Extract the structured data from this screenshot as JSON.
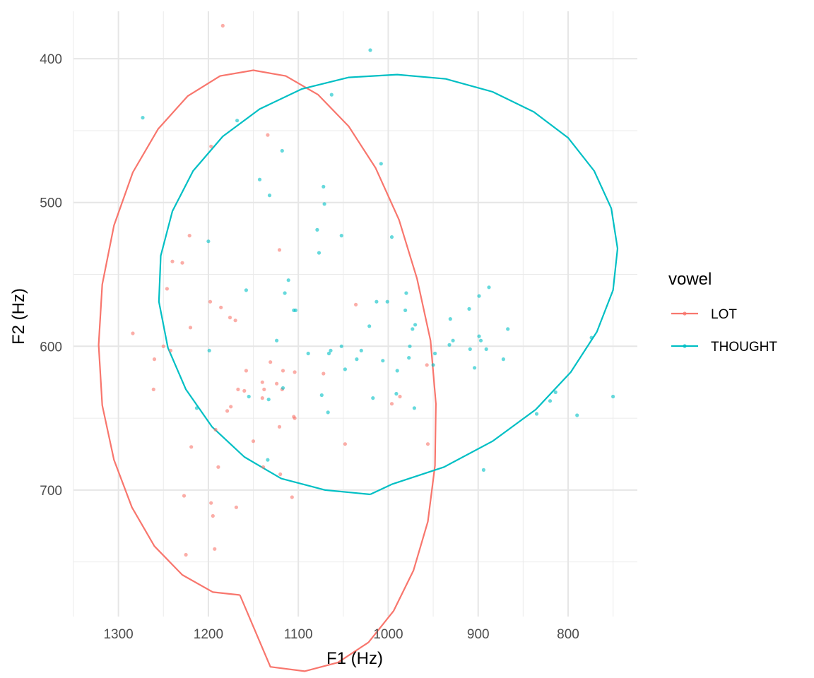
{
  "chart_data": {
    "type": "scatter",
    "xlabel": "F1 (Hz)",
    "ylabel": "F2 (Hz)",
    "x_reversed": true,
    "y_reversed": true,
    "xlim": [
      1350,
      723
    ],
    "ylim": [
      367,
      788
    ],
    "x_ticks": [
      1300,
      1200,
      1100,
      1000,
      900,
      800
    ],
    "y_ticks": [
      400,
      500,
      600,
      700
    ],
    "grid": true,
    "legend_title": "vowel",
    "legend_position": "right",
    "series": [
      {
        "name": "LOT",
        "color": "#F8766D",
        "points": [
          [
            1184,
            377
          ],
          [
            1134,
            453
          ],
          [
            1197,
            461
          ],
          [
            1221,
            523
          ],
          [
            1240,
            541
          ],
          [
            1229,
            542
          ],
          [
            1121,
            533
          ],
          [
            1246,
            560
          ],
          [
            1198,
            569
          ],
          [
            1186,
            573
          ],
          [
            1176,
            580
          ],
          [
            1170,
            582
          ],
          [
            1220,
            587
          ],
          [
            1284,
            591
          ],
          [
            1250,
            600
          ],
          [
            1242,
            603
          ],
          [
            1260,
            609
          ],
          [
            1158,
            617
          ],
          [
            1131,
            611
          ],
          [
            1117,
            617
          ],
          [
            1104,
            618
          ],
          [
            1072,
            619
          ],
          [
            1036,
            571
          ],
          [
            1261,
            630
          ],
          [
            1167,
            630
          ],
          [
            1160,
            631
          ],
          [
            1140,
            625
          ],
          [
            1138,
            630
          ],
          [
            1124,
            626
          ],
          [
            1118,
            630
          ],
          [
            1175,
            642
          ],
          [
            1179,
            645
          ],
          [
            1140,
            636
          ],
          [
            1105,
            649
          ],
          [
            1104,
            650
          ],
          [
            1121,
            656
          ],
          [
            1192,
            658
          ],
          [
            1150,
            666
          ],
          [
            1048,
            668
          ],
          [
            1219,
            670
          ],
          [
            1189,
            684
          ],
          [
            1139,
            684
          ],
          [
            1120,
            689
          ],
          [
            1227,
            704
          ],
          [
            1107,
            705
          ],
          [
            1197,
            709
          ],
          [
            1169,
            712
          ],
          [
            1195,
            718
          ],
          [
            1193,
            741
          ],
          [
            1225,
            745
          ],
          [
            996,
            640
          ],
          [
            987,
            635
          ],
          [
            957,
            613
          ],
          [
            956,
            668
          ]
        ]
      },
      {
        "name": "THOUGHT",
        "color": "#00BFC4",
        "points": [
          [
            1020,
            394
          ],
          [
            1063,
            425
          ],
          [
            1273,
            441
          ],
          [
            1168,
            443
          ],
          [
            1118,
            464
          ],
          [
            1008,
            473
          ],
          [
            1143,
            484
          ],
          [
            1072,
            489
          ],
          [
            1132,
            495
          ],
          [
            1071,
            501
          ],
          [
            1200,
            527
          ],
          [
            1079,
            519
          ],
          [
            1052,
            523
          ],
          [
            996,
            524
          ],
          [
            1077,
            535
          ],
          [
            1158,
            561
          ],
          [
            1111,
            554
          ],
          [
            1115,
            563
          ],
          [
            1105,
            575
          ],
          [
            1103,
            575
          ],
          [
            1013,
            569
          ],
          [
            1001,
            569
          ],
          [
            980,
            563
          ],
          [
            981,
            575
          ],
          [
            973,
            588
          ],
          [
            970,
            585
          ],
          [
            888,
            559
          ],
          [
            899,
            565
          ],
          [
            910,
            574
          ],
          [
            931,
            581
          ],
          [
            867,
            588
          ],
          [
            1021,
            586
          ],
          [
            1124,
            596
          ],
          [
            1199,
            603
          ],
          [
            1089,
            605
          ],
          [
            1066,
            605
          ],
          [
            1064,
            603
          ],
          [
            1052,
            600
          ],
          [
            1030,
            603
          ],
          [
            1035,
            609
          ],
          [
            1006,
            610
          ],
          [
            976,
            600
          ],
          [
            977,
            608
          ],
          [
            928,
            596
          ],
          [
            932,
            599
          ],
          [
            948,
            605
          ],
          [
            950,
            613
          ],
          [
            909,
            602
          ],
          [
            897,
            596
          ],
          [
            899,
            593
          ],
          [
            891,
            602
          ],
          [
            904,
            615
          ],
          [
            872,
            609
          ],
          [
            774,
            594
          ],
          [
            1048,
            616
          ],
          [
            990,
            617
          ],
          [
            1117,
            629
          ],
          [
            1155,
            635
          ],
          [
            1074,
            634
          ],
          [
            1017,
            636
          ],
          [
            1067,
            646
          ],
          [
            991,
            633
          ],
          [
            971,
            643
          ],
          [
            1213,
            643
          ],
          [
            835,
            647
          ],
          [
            820,
            638
          ],
          [
            814,
            632
          ],
          [
            790,
            648
          ],
          [
            750,
            635
          ],
          [
            1133,
            637
          ],
          [
            1134,
            679
          ],
          [
            894,
            686
          ]
        ]
      }
    ],
    "ellipses": [
      {
        "series": "LOT",
        "color": "#F8766D",
        "points": [
          [
            1165,
            773
          ],
          [
            1195,
            771
          ],
          [
            1229,
            759
          ],
          [
            1260,
            739
          ],
          [
            1285,
            712
          ],
          [
            1305,
            679
          ],
          [
            1318,
            641
          ],
          [
            1322,
            599
          ],
          [
            1318,
            557
          ],
          [
            1305,
            516
          ],
          [
            1284,
            479
          ],
          [
            1256,
            449
          ],
          [
            1223,
            426
          ],
          [
            1187,
            412
          ],
          [
            1150,
            408
          ],
          [
            1114,
            412
          ],
          [
            1078,
            425
          ],
          [
            1044,
            447
          ],
          [
            1014,
            476
          ],
          [
            988,
            512
          ],
          [
            968,
            553
          ],
          [
            953,
            596
          ],
          [
            947,
            640
          ],
          [
            948,
            683
          ],
          [
            956,
            722
          ],
          [
            972,
            756
          ],
          [
            994,
            784
          ],
          [
            1022,
            806
          ],
          [
            1056,
            820
          ],
          [
            1093,
            826
          ],
          [
            1131,
            823
          ],
          [
            1165,
            773
          ]
        ]
      },
      {
        "series": "THOUGHT",
        "color": "#00BFC4",
        "points": [
          [
            1020,
            703
          ],
          [
            1070,
            700
          ],
          [
            1119,
            692
          ],
          [
            1160,
            677
          ],
          [
            1196,
            656
          ],
          [
            1225,
            630
          ],
          [
            1245,
            601
          ],
          [
            1255,
            569
          ],
          [
            1253,
            537
          ],
          [
            1240,
            506
          ],
          [
            1217,
            478
          ],
          [
            1184,
            454
          ],
          [
            1143,
            435
          ],
          [
            1096,
            421
          ],
          [
            1044,
            413
          ],
          [
            990,
            411
          ],
          [
            936,
            414
          ],
          [
            884,
            423
          ],
          [
            838,
            437
          ],
          [
            800,
            455
          ],
          [
            771,
            478
          ],
          [
            752,
            504
          ],
          [
            745,
            532
          ],
          [
            750,
            561
          ],
          [
            768,
            590
          ],
          [
            797,
            618
          ],
          [
            836,
            644
          ],
          [
            884,
            666
          ],
          [
            938,
            684
          ],
          [
            996,
            696
          ],
          [
            1020,
            703
          ]
        ]
      }
    ]
  }
}
